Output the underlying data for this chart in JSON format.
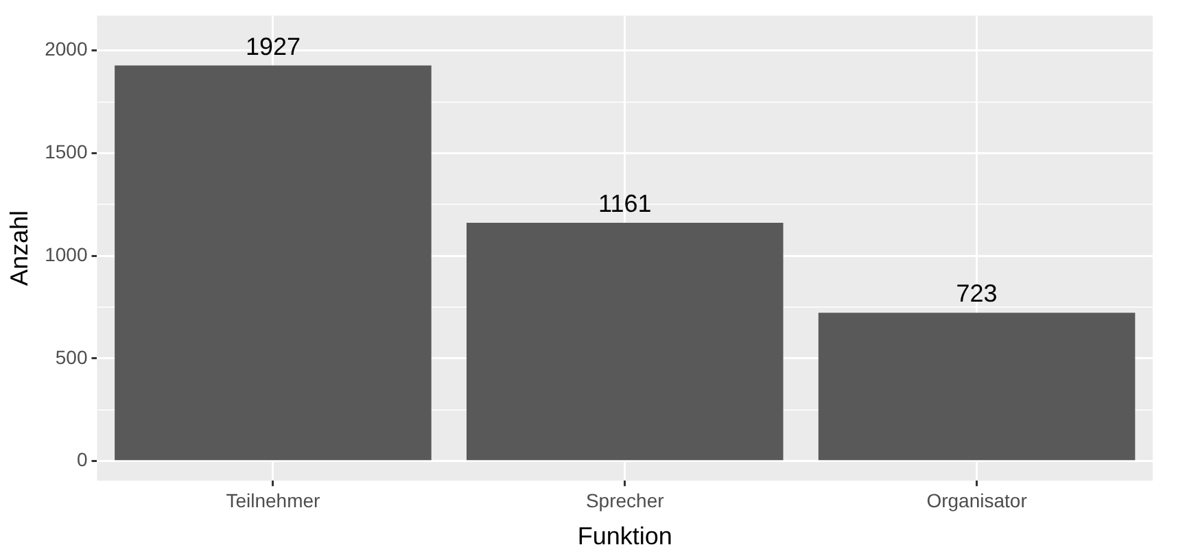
{
  "chart_data": {
    "type": "bar",
    "xlabel": "Funktion",
    "ylabel": "Anzahl",
    "categories": [
      "Teilnehmer",
      "Sprecher",
      "Organisator"
    ],
    "values": [
      1927,
      1161,
      723
    ],
    "color": "#595959",
    "ylim": [
      -95,
      2170
    ],
    "yticks": [
      0,
      {
        "value": 250,
        "label": null
      },
      500,
      {
        "value": 750,
        "label": null
      },
      1000,
      {
        "value": 1250,
        "label": null
      },
      1500,
      {
        "value": 1750,
        "label": null
      },
      2000
    ],
    "grid": true,
    "data_labels": true,
    "legend": false
  }
}
